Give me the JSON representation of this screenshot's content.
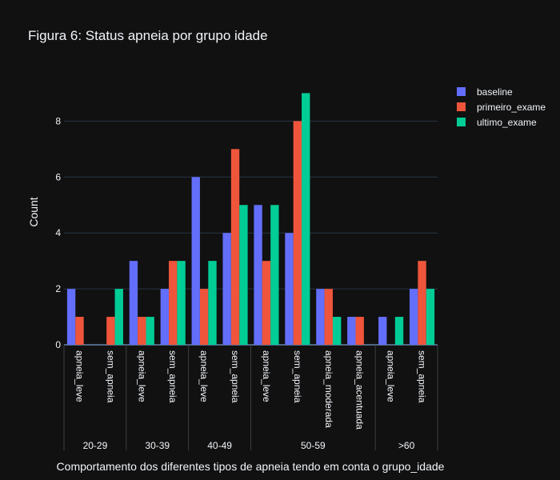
{
  "chart_data": {
    "type": "bar",
    "title": "Figura 6: Status apneia por grupo idade",
    "xlabel": "Comportamento dos diferentes tipos de apneia tendo em conta o grupo_idade",
    "ylabel": "Count",
    "ylim": [
      0,
      9.47
    ],
    "yticks": [
      0,
      2,
      4,
      6,
      8
    ],
    "grid": true,
    "legend_position": "top-right",
    "groups": [
      {
        "label": "20-29",
        "categories": [
          "apneia_leve",
          "sem_apneia"
        ]
      },
      {
        "label": "30-39",
        "categories": [
          "apneia_leve",
          "sem_apneia"
        ]
      },
      {
        "label": "40-49",
        "categories": [
          "apneia_leve",
          "sem_apneia"
        ]
      },
      {
        "label": "50-59",
        "categories": [
          "apneia_leve",
          "sem_apneia",
          "apneia_moderada",
          "apneia_acentuada"
        ]
      },
      {
        "label": ">60",
        "categories": [
          "apneia_leve",
          "sem_apneia"
        ]
      }
    ],
    "series": [
      {
        "name": "baseline",
        "color": "#636efa",
        "values": [
          2,
          0,
          3,
          2,
          6,
          4,
          5,
          4,
          2,
          1,
          1,
          2
        ]
      },
      {
        "name": "primeiro_exame",
        "color": "#ef553b",
        "values": [
          1,
          1,
          1,
          3,
          2,
          7,
          3,
          8,
          2,
          1,
          0,
          3
        ]
      },
      {
        "name": "ultimo_exame",
        "color": "#00cc96",
        "values": [
          0,
          2,
          1,
          3,
          3,
          5,
          5,
          9,
          1,
          0,
          1,
          2
        ]
      }
    ]
  }
}
